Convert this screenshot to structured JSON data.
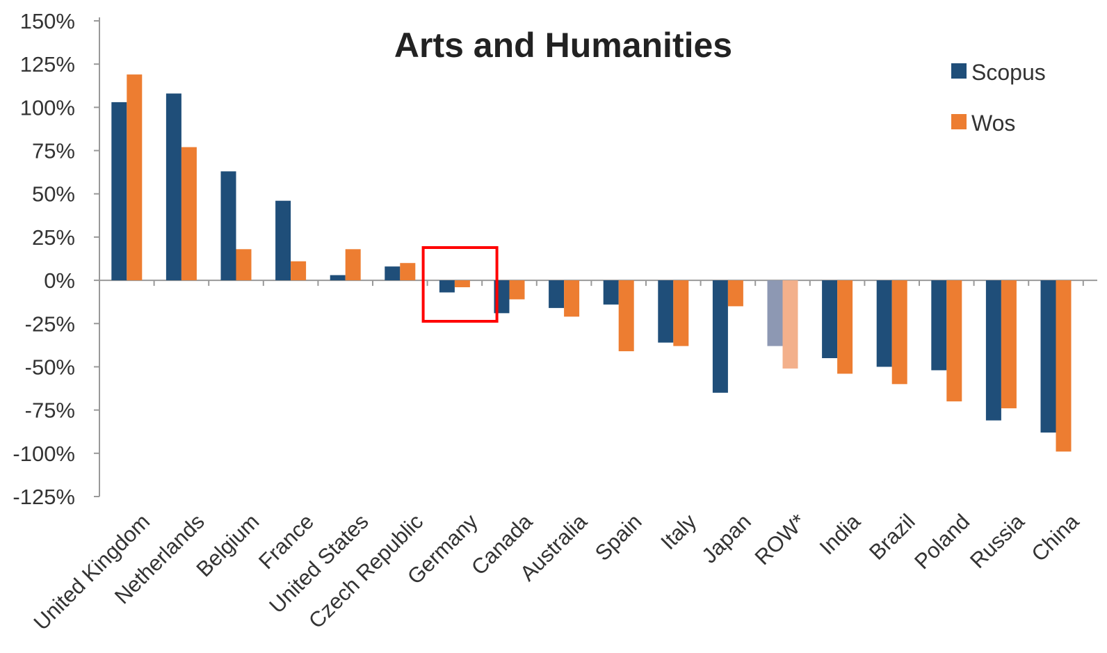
{
  "chart_data": {
    "type": "bar",
    "title": "Arts and Humanities",
    "xlabel": "",
    "ylabel": "",
    "ylim": [
      -125,
      150
    ],
    "y_ticks": [
      150,
      125,
      100,
      75,
      50,
      25,
      0,
      -25,
      -50,
      -75,
      -100,
      -125
    ],
    "y_tick_labels": [
      "150%",
      "125%",
      "100%",
      "75%",
      "50%",
      "25%",
      "0%",
      "-25%",
      "-50%",
      "-75%",
      "-100%",
      "-125%"
    ],
    "categories": [
      "United Kingdom",
      "Netherlands",
      "Belgium",
      "France",
      "United States",
      "Czech Republic",
      "Germany",
      "Canada",
      "Australia",
      "Spain",
      "Italy",
      "Japan",
      "ROW*",
      "India",
      "Brazil",
      "Poland",
      "Russia",
      "China"
    ],
    "series": [
      {
        "name": "Scopus",
        "color": "#1f4e79",
        "values": [
          103,
          108,
          63,
          46,
          3,
          8,
          -7,
          -19,
          -16,
          -14,
          -36,
          -65,
          -38,
          -45,
          -50,
          -52,
          -81,
          -88
        ]
      },
      {
        "name": "Wos",
        "color": "#ed7d31",
        "values": [
          119,
          77,
          18,
          11,
          18,
          10,
          -4,
          -11,
          -21,
          -41,
          -38,
          -15,
          -51,
          -54,
          -60,
          -70,
          -74,
          -99
        ]
      }
    ],
    "faded_category": "ROW*",
    "faded_colors": {
      "Scopus": "#8d98b3",
      "Wos": "#f3b08b"
    },
    "legend": {
      "position": "top-right"
    },
    "grid": false,
    "highlight_box": {
      "category": "Germany",
      "color": "#ff0000"
    }
  }
}
